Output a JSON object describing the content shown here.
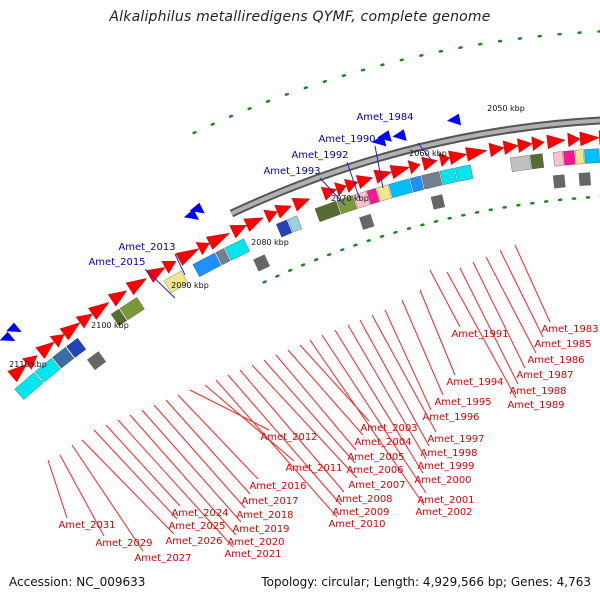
{
  "title": "Alkaliphilus metalliredigens QYMF, complete genome",
  "footer": {
    "accession": "Accession: NC_009633",
    "topology": "Topology: circular; Length: 4,929,566 bp; Genes: 4,763"
  },
  "scale_ticks": [
    "2050 kbp",
    "2060 kbp",
    "2070 kbp",
    "2080 kbp",
    "2090 kbp",
    "2100 kbp",
    "2110 kbp"
  ],
  "labels_blue": [
    "Amet_1984",
    "Amet_1990",
    "Amet_1992",
    "Amet_1993",
    "Amet_2013",
    "Amet_2015"
  ],
  "labels_red": [
    "Amet_1983",
    "Amet_1985",
    "Amet_1986",
    "Amet_1987",
    "Amet_1988",
    "Amet_1989",
    "Amet_1991",
    "Amet_1994",
    "Amet_1995",
    "Amet_1996",
    "Amet_1997",
    "Amet_1998",
    "Amet_1999",
    "Amet_2000",
    "Amet_2001",
    "Amet_2002",
    "Amet_2003",
    "Amet_2004",
    "Amet_2005",
    "Amet_2006",
    "Amet_2007",
    "Amet_2008",
    "Amet_2009",
    "Amet_2010",
    "Amet_2011",
    "Amet_2012",
    "Amet_2016",
    "Amet_2017",
    "Amet_2018",
    "Amet_2019",
    "Amet_2020",
    "Amet_2021",
    "Amet_2024",
    "Amet_2025",
    "Amet_2026",
    "Amet_2027",
    "Amet_2029",
    "Amet_2031"
  ],
  "colors": {
    "forward_gene": "#ff0000",
    "reverse_gene": "#0000ff",
    "backbone": "#888888",
    "gc_dots": "#1a8a1a",
    "label_blue": "#0000cc",
    "label_red": "#dd0000",
    "line_red": "#ff2020",
    "line_blue": "#2020dd"
  }
}
